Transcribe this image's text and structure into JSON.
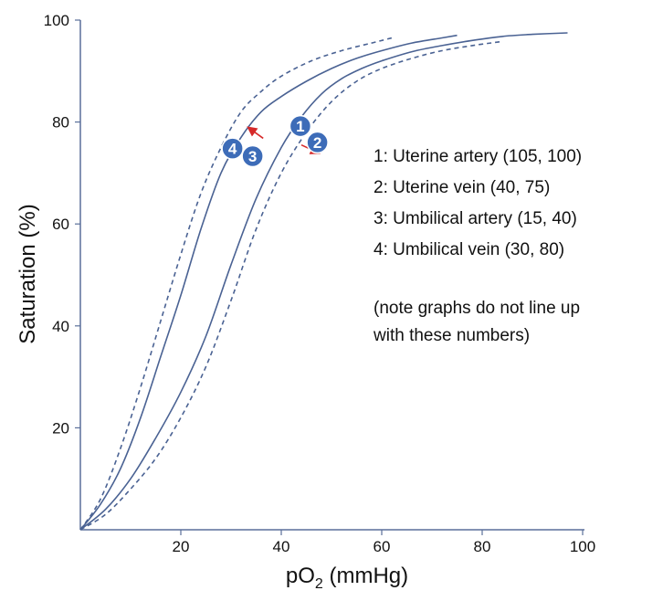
{
  "chart_data": {
    "type": "line",
    "title": "",
    "xlabel": "pO",
    "xlabel_sub": "2",
    "xlabel_unit": " (mmHg)",
    "ylabel": "Saturation (%)",
    "xlim": [
      0,
      100
    ],
    "ylim": [
      0,
      100
    ],
    "x_ticks": [
      20,
      40,
      60,
      80,
      100
    ],
    "y_ticks": [
      20,
      40,
      60,
      80,
      100
    ],
    "grid": false,
    "colors": {
      "curve": "#4a6293",
      "marker": "#3d6cb8",
      "arrow": "#d62a2a",
      "axis": "#5a6f9a"
    },
    "series": [
      {
        "style": "dashed",
        "points": [
          [
            0,
            0
          ],
          [
            4,
            6
          ],
          [
            8,
            16
          ],
          [
            12,
            28
          ],
          [
            16,
            41
          ],
          [
            20,
            54
          ],
          [
            24,
            66
          ],
          [
            28,
            75
          ],
          [
            32,
            82
          ],
          [
            36,
            86
          ],
          [
            40,
            89
          ],
          [
            46,
            92
          ],
          [
            52,
            94
          ],
          [
            58,
            95.5
          ],
          [
            62,
            96.5
          ]
        ]
      },
      {
        "style": "solid",
        "points": [
          [
            0,
            0
          ],
          [
            4,
            5
          ],
          [
            8,
            12
          ],
          [
            12,
            22
          ],
          [
            16,
            34
          ],
          [
            20,
            46
          ],
          [
            24,
            59
          ],
          [
            28,
            70
          ],
          [
            32,
            77
          ],
          [
            36,
            82
          ],
          [
            40,
            85
          ],
          [
            45,
            88
          ],
          [
            50,
            90.5
          ],
          [
            55,
            92.5
          ],
          [
            60,
            94
          ],
          [
            66,
            95.5
          ],
          [
            72,
            96.5
          ],
          [
            75,
            97
          ]
        ]
      },
      {
        "style": "solid",
        "points": [
          [
            0,
            0
          ],
          [
            5,
            4
          ],
          [
            10,
            10
          ],
          [
            15,
            18
          ],
          [
            20,
            27
          ],
          [
            25,
            38
          ],
          [
            30,
            52
          ],
          [
            35,
            65
          ],
          [
            40,
            75
          ],
          [
            44,
            81
          ],
          [
            48,
            85.5
          ],
          [
            52,
            88.5
          ],
          [
            56,
            90.5
          ],
          [
            60,
            92
          ],
          [
            66,
            93.8
          ],
          [
            72,
            95
          ],
          [
            78,
            96
          ],
          [
            84,
            96.8
          ],
          [
            90,
            97.2
          ],
          [
            97,
            97.5
          ]
        ]
      },
      {
        "style": "dashed",
        "points": [
          [
            0,
            0
          ],
          [
            5,
            3
          ],
          [
            10,
            8
          ],
          [
            15,
            14
          ],
          [
            20,
            22
          ],
          [
            25,
            32
          ],
          [
            30,
            45
          ],
          [
            35,
            59
          ],
          [
            40,
            70
          ],
          [
            45,
            78
          ],
          [
            50,
            84
          ],
          [
            55,
            88
          ],
          [
            60,
            90.5
          ],
          [
            66,
            92.5
          ],
          [
            72,
            94
          ],
          [
            78,
            95
          ],
          [
            84,
            95.8
          ]
        ]
      }
    ],
    "markers": [
      {
        "label": "1",
        "x": 43.8,
        "y": 79.2
      },
      {
        "label": "2",
        "x": 47.2,
        "y": 76
      },
      {
        "label": "3",
        "x": 34.3,
        "y": 73.3
      },
      {
        "label": "4",
        "x": 30.3,
        "y": 74.8
      }
    ],
    "arrows": [
      {
        "x1": 44,
        "y1": 75.5,
        "x2": 47.3,
        "y2": 74
      },
      {
        "x1": 36.4,
        "y1": 76.8,
        "x2": 33.6,
        "y2": 78.8
      }
    ],
    "legend": [
      "1: Uterine artery (105, 100)",
      "2: Uterine vein (40, 75)",
      "3: Umbilical artery (15, 40)",
      "4: Umbilical vein (30, 80)"
    ],
    "note": [
      "(note graphs do not line up",
      "with these numbers)"
    ]
  }
}
